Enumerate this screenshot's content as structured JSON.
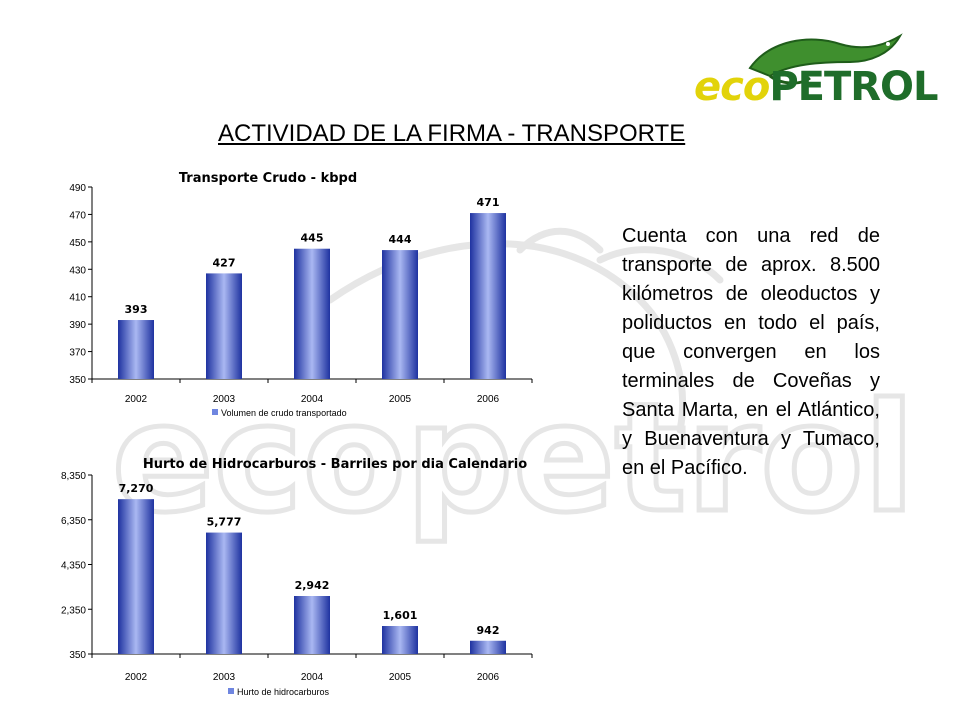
{
  "logo": {
    "eco": "eco",
    "petrol": "PETROL"
  },
  "page": {
    "title": "ACTIVIDAD DE LA FIRMA - TRANSPORTE",
    "description": "Cuenta con una red de transporte de aprox. 8.500 kilómetros de oleoductos y poliductos en todo el país, que convergen en los terminales de Coveñas y Santa Marta, en el Atlántico, y Buenaventura y Tumaco, en el Pacífico."
  },
  "colors": {
    "bar_dark": "#1e32a0",
    "bar_light": "#aab8f2",
    "accent_yellow": "#e2d30a",
    "accent_green": "#1f6d2a"
  },
  "chart_data": [
    {
      "type": "bar",
      "title": "Transporte Crudo - kbpd",
      "categories": [
        "2002",
        "2003",
        "2004",
        "2005",
        "2006"
      ],
      "series": [
        {
          "name": "Volumen de crudo transportado",
          "values": [
            393,
            427,
            445,
            444,
            471
          ]
        }
      ],
      "data_labels": [
        "393",
        "427",
        "445",
        "444",
        "471"
      ],
      "ylim": [
        350,
        490
      ],
      "yticks": [
        "350",
        "370",
        "390",
        "410",
        "430",
        "450",
        "470",
        "490"
      ],
      "legend": "bottom",
      "grid": false
    },
    {
      "type": "bar",
      "title": "Hurto de Hidrocarburos - Barriles por dia Calendario",
      "categories": [
        "2002",
        "2003",
        "2004",
        "2005",
        "2006"
      ],
      "series": [
        {
          "name": "Hurto de hidrocarburos",
          "values": [
            7270,
            5777,
            2942,
            1601,
            942
          ]
        }
      ],
      "data_labels": [
        "7,270",
        "5,777",
        "2,942",
        "1,601",
        "942"
      ],
      "ylim": [
        350,
        8350
      ],
      "yticks": [
        "350",
        "2,350",
        "4,350",
        "6,350",
        "8,350"
      ],
      "legend": "bottom",
      "grid": false
    }
  ]
}
